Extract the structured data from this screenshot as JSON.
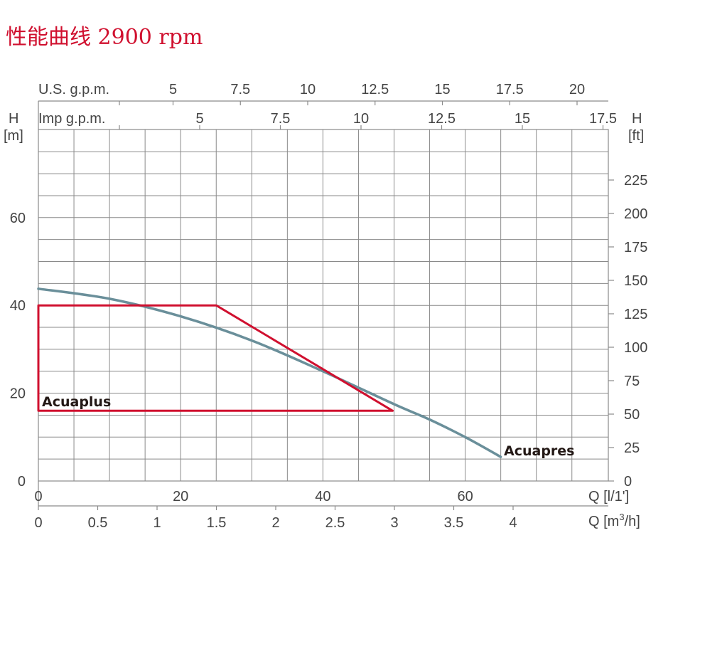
{
  "chart_data": {
    "type": "line",
    "title": "性能曲线 2900 rpm",
    "grid": true,
    "left_axis": {
      "label_top": "H",
      "unit": "[m]",
      "range": [
        0,
        80
      ],
      "tick_values": [
        0,
        20,
        40,
        60
      ]
    },
    "right_axis": {
      "label_top": "H",
      "unit": "[ft]",
      "tick_values": [
        0,
        25,
        50,
        75,
        100,
        125,
        150,
        175,
        200,
        225
      ]
    },
    "bottom_axis_lpm": {
      "label": "Q [l/1']",
      "range": [
        0,
        80
      ],
      "tick_values": [
        0,
        20,
        40,
        60
      ]
    },
    "bottom_axis_m3h": {
      "label": "Q [m",
      "label_sup": "3",
      "label_end": "/h]",
      "tick_values": [
        "0",
        "0.5",
        "1",
        "1.5",
        "2",
        "2.5",
        "3",
        "3.5",
        "4"
      ]
    },
    "top_axis_usgpm": {
      "label": "U.S. g.p.m.",
      "tick_values": [
        "5",
        "7.5",
        "10",
        "12.5",
        "15",
        "17.5",
        "20"
      ]
    },
    "top_axis_impgpm": {
      "label": "Imp g.p.m.",
      "tick_values": [
        "5",
        "7.5",
        "10",
        "12.5",
        "15",
        "17.5"
      ]
    },
    "series": [
      {
        "name": "Acuapres",
        "color": "#6a8f9a",
        "x": [
          0,
          10,
          20,
          30,
          40,
          50,
          55,
          60,
          65
        ],
        "y": [
          43.8,
          41.5,
          37.5,
          32,
          25,
          17.5,
          14,
          10,
          5.5
        ]
      },
      {
        "name": "Acuaplus",
        "color": "#d0102f",
        "shape": "closed",
        "x": [
          0,
          0,
          25,
          49.8,
          0
        ],
        "y": [
          16,
          40,
          40,
          16,
          16
        ]
      }
    ]
  }
}
